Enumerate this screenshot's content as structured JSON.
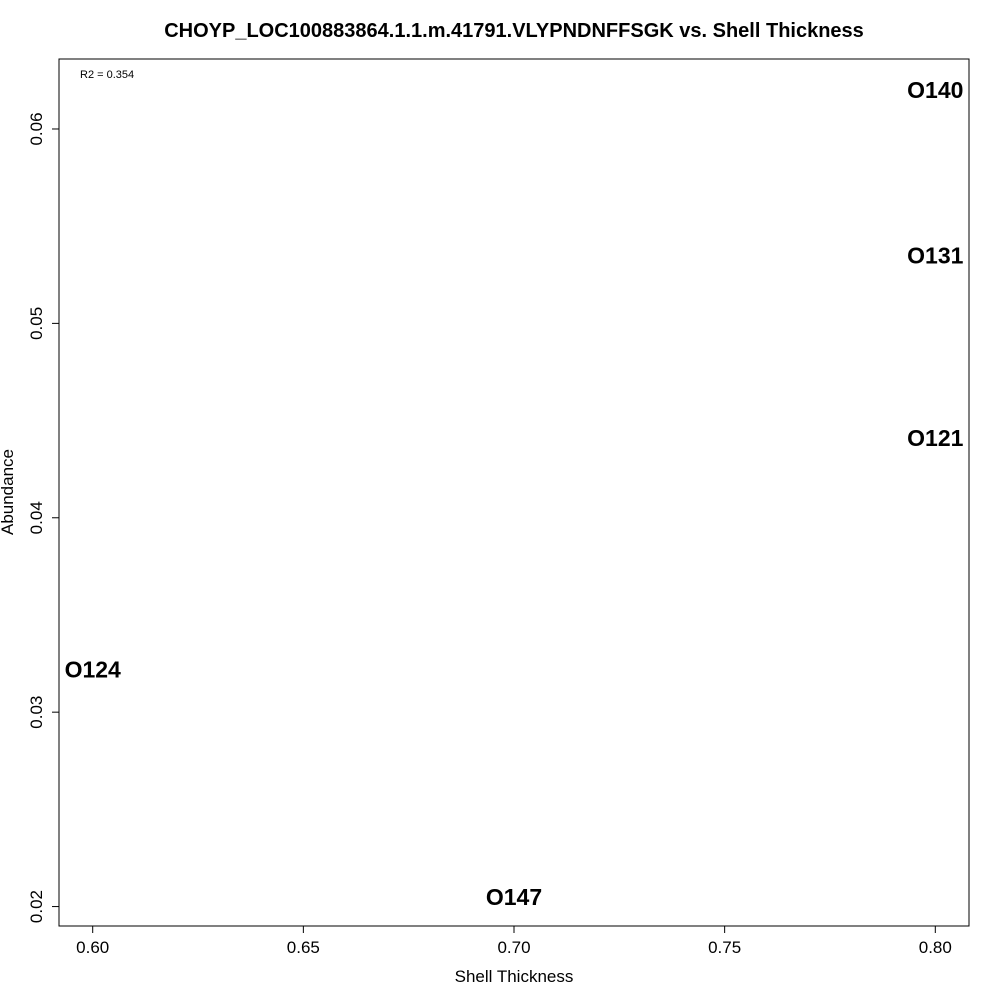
{
  "chart_data": {
    "type": "scatter",
    "title": "CHOYP_LOC100883864.1.1.m.41791.VLYPNDNFFSGK vs. Shell Thickness",
    "xlabel": "Shell Thickness",
    "ylabel": "Abundance",
    "xlim": [
      0.592,
      0.808
    ],
    "ylim": [
      0.019,
      0.0636
    ],
    "xticks": [
      0.6,
      0.65,
      0.7,
      0.75,
      0.8
    ],
    "xtick_labels": [
      "0.60",
      "0.65",
      "0.70",
      "0.75",
      "0.80"
    ],
    "yticks": [
      0.02,
      0.03,
      0.04,
      0.05,
      0.06
    ],
    "ytick_labels": [
      "0.02",
      "0.03",
      "0.04",
      "0.05",
      "0.06"
    ],
    "annotation": "R2 = 0.354",
    "grid": false,
    "marker": "text-label",
    "points": [
      {
        "label": "O140",
        "x": 0.8,
        "y": 0.062
      },
      {
        "label": "O131",
        "x": 0.8,
        "y": 0.0535
      },
      {
        "label": "O121",
        "x": 0.8,
        "y": 0.0441
      },
      {
        "label": "O124",
        "x": 0.6,
        "y": 0.0322
      },
      {
        "label": "O147",
        "x": 0.7,
        "y": 0.0205
      }
    ]
  }
}
